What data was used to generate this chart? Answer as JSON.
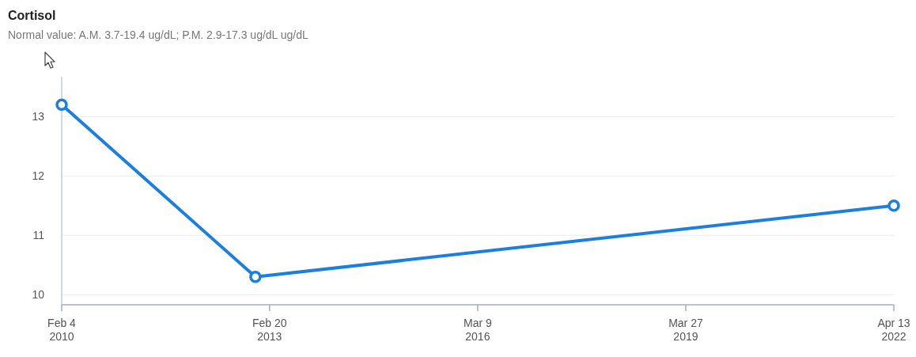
{
  "chart_data": {
    "type": "line",
    "title": "Cortisol",
    "subtitle": "Normal value: A.M. 3.7-19.4 ug/dL; P.M. 2.9-17.3 ug/dL ug/dL",
    "x": [
      "2010-02-04",
      "2012-12-06",
      "2022-04-13"
    ],
    "series": [
      {
        "color": "#1a7fe0",
        "values": [
          13.2,
          10.3,
          11.5
        ]
      }
    ],
    "xlim": [
      "2010-02-04",
      "2022-04-13"
    ],
    "xticks": [
      {
        "value": "2010-02-04",
        "label": "Feb 4\n2010"
      },
      {
        "value": "2013-02-20",
        "label": "Feb 20\n2013"
      },
      {
        "value": "2016-03-09",
        "label": "Mar 9\n2016"
      },
      {
        "value": "2019-03-27",
        "label": "Mar 27\n2019"
      },
      {
        "value": "2022-04-13",
        "label": "Apr 13\n2022"
      }
    ],
    "ylim": [
      9.83,
      13.67
    ],
    "yticks": [
      10,
      11,
      12,
      13
    ],
    "grid": "y",
    "marker": "circle",
    "line_style": "solid"
  }
}
